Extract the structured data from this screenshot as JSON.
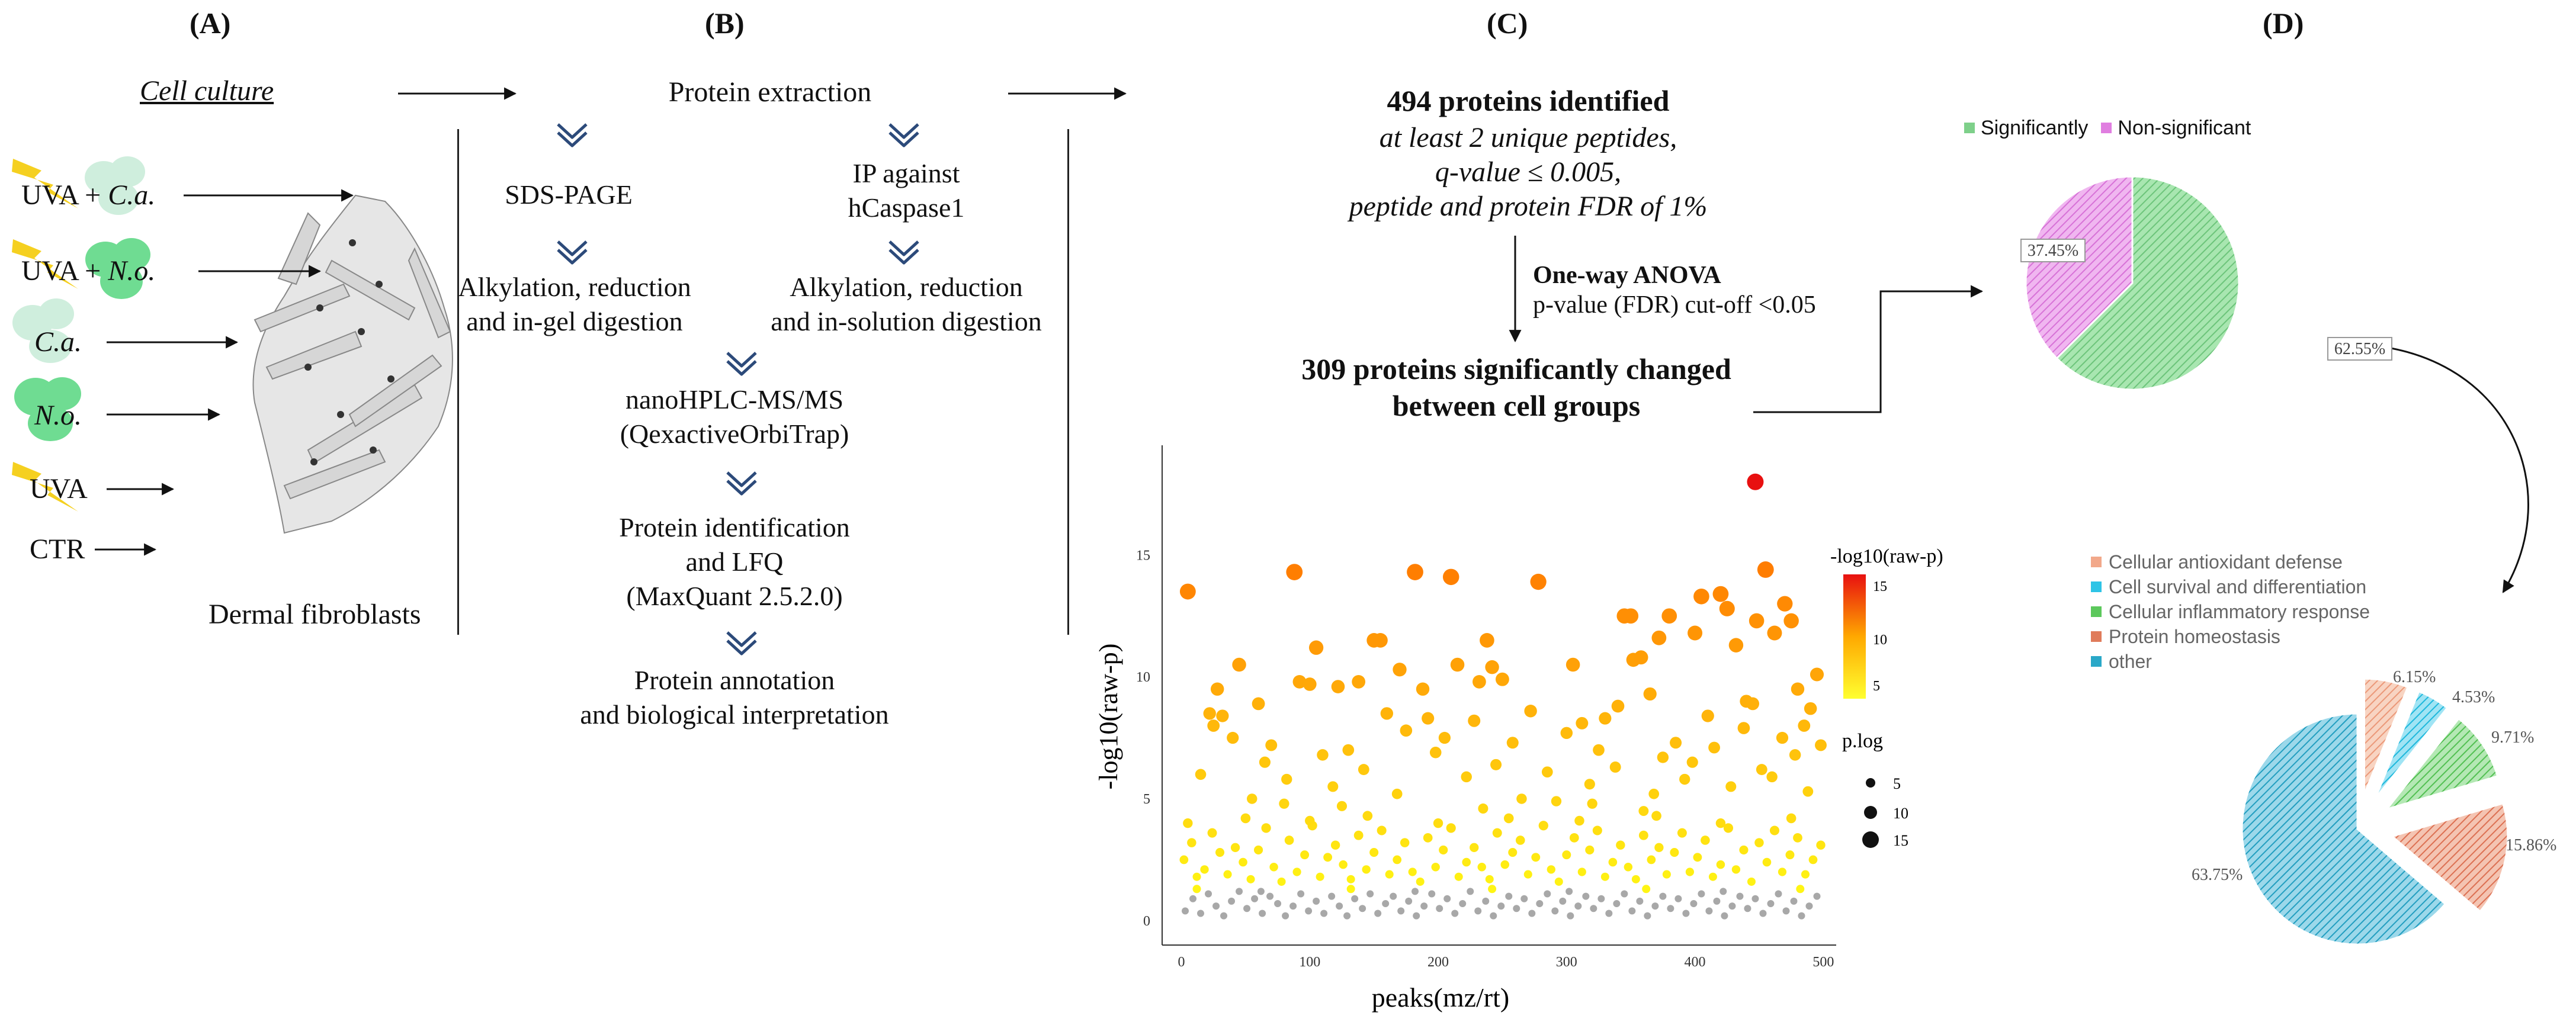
{
  "panel_labels": {
    "a": "(A)",
    "b": "(B)",
    "c": "(C)",
    "d": "(D)"
  },
  "panel_a": {
    "title": "Cell culture",
    "rows": [
      {
        "prefix": "UVA + ",
        "agent": "C.a.",
        "suffix": ""
      },
      {
        "prefix": "UVA + ",
        "agent": "N.o.",
        "suffix": ""
      },
      {
        "prefix": "",
        "agent": "C.a.",
        "suffix": ""
      },
      {
        "prefix": "",
        "agent": "N.o.",
        "suffix": ""
      },
      {
        "prefix": "UVA",
        "agent": "",
        "suffix": ""
      },
      {
        "prefix": "CTR",
        "agent": "",
        "suffix": ""
      }
    ],
    "cells_label": "Dermal fibroblasts"
  },
  "panel_b": {
    "top": "Protein extraction",
    "left_1": "SDS-PAGE",
    "left_2a": "Alkylation, reduction",
    "left_2b": "and in-gel digestion",
    "right_1a": "IP against",
    "right_1b": "hCaspase1",
    "right_2a": "Alkylation, reduction",
    "right_2b": "and in-solution digestion",
    "step_3a": "nanoHPLC-MS/MS",
    "step_3b": "(QexactiveOrbiTrap)",
    "step_4a": "Protein identification",
    "step_4b": "and LFQ",
    "step_4c": "(MaxQuant 2.5.2.0)",
    "step_5a": "Protein annotation",
    "step_5b": "and biological interpretation"
  },
  "panel_c": {
    "identified": "494 proteins identified",
    "crit_1": "at least 2 unique peptides,",
    "crit_2": "q-value ≤ 0.005,",
    "crit_3": "peptide and protein FDR of 1%",
    "test_title": "One-way ANOVA",
    "test_detail": "p-value (FDR) cut-off <0.05",
    "sig_1": "309 proteins significantly changed",
    "sig_2": "between cell groups"
  },
  "panel_d": {
    "legend_sig": "Significantly",
    "legend_nonsig": "Non-significant",
    "pie1_sig_label": "62.55%",
    "pie1_nonsig_label": "37.45%",
    "pie2_legend": [
      "Cellular antioxidant defense",
      "Cell survival and differentiation",
      "Cellular inflammatory response",
      "Protein homeostasis",
      "other"
    ],
    "pie2_labels": [
      "6.15%",
      "4.53%",
      "9.71%",
      "15.86%",
      "63.75%"
    ]
  },
  "colors": {
    "sig_green": "#7ed08a",
    "nonsig_pink": "#e07ee0",
    "antioxidant": "#f2a88a",
    "survival": "#2ec4e6",
    "inflammatory": "#5cc85c",
    "homeostasis": "#e07b5a",
    "other": "#2aa8c8",
    "sunflower": "#f5d020",
    "green_cell": "#6fdc92"
  },
  "chart_data": [
    {
      "type": "pie",
      "title": "",
      "categories": [
        "Significantly",
        "Non-significant"
      ],
      "values": [
        62.55,
        37.45
      ],
      "legend": "top"
    },
    {
      "type": "pie",
      "title": "",
      "categories": [
        "Cellular antioxidant defense",
        "Cell survival and differentiation",
        "Cellular inflammatory response",
        "Protein homeostasis",
        "other"
      ],
      "values": [
        6.15,
        4.53,
        9.71,
        15.86,
        63.75
      ],
      "legend": "top-left"
    },
    {
      "type": "scatter",
      "title": "",
      "xlabel": "peaks(mz/rt)",
      "ylabel": "-log10(raw-p)",
      "xlim": [
        -15,
        510
      ],
      "ylim": [
        -1,
        19.5
      ],
      "xticks": [
        0,
        100,
        200,
        300,
        400,
        500
      ],
      "yticks": [
        0,
        5,
        10,
        15
      ],
      "color_legend_title": "-log10(raw-p)",
      "color_legend_ticks": [
        15,
        10,
        5
      ],
      "size_legend_title": "p.log",
      "size_legend_values": [
        5,
        10,
        15
      ],
      "significance_threshold": 1.3,
      "points": [
        [
          5,
          13.5
        ],
        [
          22,
          8.5
        ],
        [
          28,
          9.5
        ],
        [
          32,
          8.4
        ],
        [
          45,
          10.5
        ],
        [
          88,
          14.3
        ],
        [
          92,
          9.8
        ],
        [
          105,
          11.2
        ],
        [
          100,
          9.7
        ],
        [
          122,
          9.6
        ],
        [
          138,
          9.8
        ],
        [
          150,
          11.5
        ],
        [
          155,
          11.5
        ],
        [
          170,
          10.3
        ],
        [
          182,
          14.3
        ],
        [
          188,
          9.5
        ],
        [
          192,
          8.3
        ],
        [
          210,
          14.1
        ],
        [
          215,
          10.5
        ],
        [
          232,
          9.8
        ],
        [
          238,
          11.5
        ],
        [
          242,
          10.4
        ],
        [
          250,
          9.9
        ],
        [
          278,
          13.9
        ],
        [
          305,
          10.5
        ],
        [
          330,
          8.3
        ],
        [
          345,
          12.5
        ],
        [
          350,
          12.5
        ],
        [
          352,
          10.7
        ],
        [
          358,
          10.8
        ],
        [
          365,
          9.3
        ],
        [
          372,
          11.6
        ],
        [
          380,
          12.5
        ],
        [
          400,
          11.8
        ],
        [
          405,
          13.3
        ],
        [
          420,
          13.4
        ],
        [
          425,
          12.8
        ],
        [
          432,
          11.3
        ],
        [
          440,
          9.0
        ],
        [
          448,
          12.3
        ],
        [
          455,
          14.4
        ],
        [
          462,
          11.8
        ],
        [
          470,
          13.0
        ],
        [
          475,
          12.3
        ],
        [
          480,
          9.5
        ],
        [
          490,
          8.7
        ],
        [
          495,
          10.1
        ],
        [
          447,
          18.0
        ],
        [
          15,
          6.0
        ],
        [
          25,
          8.0
        ],
        [
          40,
          7.5
        ],
        [
          55,
          5.0
        ],
        [
          65,
          6.5
        ],
        [
          70,
          7.2
        ],
        [
          80,
          4.8
        ],
        [
          110,
          6.8
        ],
        [
          118,
          5.5
        ],
        [
          130,
          7.0
        ],
        [
          142,
          6.2
        ],
        [
          160,
          8.5
        ],
        [
          168,
          5.2
        ],
        [
          175,
          7.8
        ],
        [
          198,
          6.9
        ],
        [
          205,
          7.5
        ],
        [
          222,
          5.9
        ],
        [
          228,
          8.2
        ],
        [
          245,
          6.4
        ],
        [
          258,
          7.3
        ],
        [
          265,
          5.0
        ],
        [
          272,
          8.6
        ],
        [
          285,
          6.1
        ],
        [
          292,
          4.9
        ],
        [
          300,
          7.7
        ],
        [
          312,
          8.1
        ],
        [
          318,
          5.6
        ],
        [
          325,
          7.0
        ],
        [
          338,
          6.3
        ],
        [
          340,
          8.8
        ],
        [
          368,
          5.2
        ],
        [
          375,
          6.7
        ],
        [
          385,
          7.3
        ],
        [
          392,
          5.8
        ],
        [
          398,
          6.5
        ],
        [
          410,
          8.4
        ],
        [
          415,
          7.1
        ],
        [
          428,
          5.5
        ],
        [
          438,
          7.9
        ],
        [
          445,
          8.9
        ],
        [
          452,
          6.2
        ],
        [
          460,
          5.9
        ],
        [
          468,
          7.5
        ],
        [
          478,
          6.8
        ],
        [
          485,
          8.0
        ],
        [
          488,
          5.3
        ],
        [
          498,
          7.2
        ],
        [
          60,
          8.9
        ],
        [
          82,
          5.8
        ],
        [
          125,
          4.7
        ],
        [
          235,
          4.6
        ],
        [
          320,
          4.8
        ],
        [
          360,
          4.5
        ],
        [
          2,
          2.5
        ],
        [
          8,
          3.2
        ],
        [
          12,
          1.8
        ],
        [
          18,
          2.1
        ],
        [
          24,
          3.6
        ],
        [
          30,
          2.8
        ],
        [
          36,
          1.9
        ],
        [
          42,
          3.0
        ],
        [
          48,
          2.4
        ],
        [
          54,
          1.7
        ],
        [
          60,
          2.9
        ],
        [
          66,
          3.8
        ],
        [
          72,
          2.2
        ],
        [
          78,
          1.6
        ],
        [
          84,
          3.3
        ],
        [
          90,
          2.0
        ],
        [
          96,
          2.7
        ],
        [
          102,
          3.9
        ],
        [
          108,
          1.8
        ],
        [
          114,
          2.6
        ],
        [
          120,
          3.1
        ],
        [
          126,
          2.3
        ],
        [
          132,
          1.7
        ],
        [
          138,
          3.5
        ],
        [
          144,
          2.1
        ],
        [
          150,
          2.8
        ],
        [
          156,
          3.7
        ],
        [
          162,
          1.9
        ],
        [
          168,
          2.5
        ],
        [
          174,
          3.2
        ],
        [
          180,
          2.0
        ],
        [
          186,
          1.6
        ],
        [
          192,
          3.4
        ],
        [
          198,
          2.2
        ],
        [
          204,
          2.9
        ],
        [
          210,
          3.8
        ],
        [
          216,
          1.8
        ],
        [
          222,
          2.4
        ],
        [
          228,
          3.0
        ],
        [
          234,
          2.2
        ],
        [
          240,
          1.7
        ],
        [
          246,
          3.6
        ],
        [
          252,
          2.3
        ],
        [
          258,
          2.8
        ],
        [
          264,
          3.3
        ],
        [
          270,
          1.9
        ],
        [
          276,
          2.6
        ],
        [
          282,
          3.9
        ],
        [
          288,
          2.1
        ],
        [
          294,
          1.6
        ],
        [
          300,
          2.7
        ],
        [
          306,
          3.4
        ],
        [
          312,
          2.0
        ],
        [
          318,
          2.9
        ],
        [
          324,
          3.7
        ],
        [
          330,
          1.8
        ],
        [
          336,
          2.4
        ],
        [
          342,
          3.1
        ],
        [
          348,
          2.2
        ],
        [
          354,
          1.7
        ],
        [
          360,
          3.5
        ],
        [
          366,
          2.5
        ],
        [
          372,
          3.0
        ],
        [
          378,
          1.9
        ],
        [
          384,
          2.8
        ],
        [
          390,
          3.6
        ],
        [
          396,
          2.0
        ],
        [
          402,
          2.6
        ],
        [
          408,
          3.3
        ],
        [
          414,
          1.8
        ],
        [
          420,
          2.3
        ],
        [
          426,
          3.8
        ],
        [
          432,
          2.1
        ],
        [
          438,
          2.9
        ],
        [
          444,
          1.6
        ],
        [
          450,
          3.2
        ],
        [
          456,
          2.4
        ],
        [
          462,
          3.7
        ],
        [
          468,
          2.0
        ],
        [
          474,
          2.7
        ],
        [
          480,
          3.4
        ],
        [
          486,
          1.9
        ],
        [
          492,
          2.5
        ],
        [
          498,
          3.1
        ],
        [
          5,
          4.0
        ],
        [
          50,
          4.2
        ],
        [
          100,
          4.1
        ],
        [
          145,
          4.3
        ],
        [
          200,
          4.0
        ],
        [
          255,
          4.2
        ],
        [
          310,
          4.1
        ],
        [
          370,
          4.3
        ],
        [
          420,
          4.0
        ],
        [
          475,
          4.2
        ],
        [
          3,
          0.4
        ],
        [
          9,
          0.9
        ],
        [
          15,
          0.3
        ],
        [
          21,
          1.1
        ],
        [
          27,
          0.6
        ],
        [
          33,
          0.2
        ],
        [
          39,
          0.8
        ],
        [
          45,
          1.2
        ],
        [
          51,
          0.5
        ],
        [
          57,
          0.9
        ],
        [
          63,
          0.3
        ],
        [
          69,
          1.0
        ],
        [
          75,
          0.7
        ],
        [
          81,
          0.2
        ],
        [
          87,
          0.6
        ],
        [
          93,
          1.1
        ],
        [
          99,
          0.4
        ],
        [
          105,
          0.8
        ],
        [
          111,
          0.3
        ],
        [
          117,
          1.0
        ],
        [
          123,
          0.6
        ],
        [
          129,
          0.2
        ],
        [
          135,
          0.9
        ],
        [
          141,
          0.5
        ],
        [
          147,
          1.1
        ],
        [
          153,
          0.3
        ],
        [
          159,
          0.7
        ],
        [
          165,
          1.0
        ],
        [
          171,
          0.4
        ],
        [
          177,
          0.8
        ],
        [
          183,
          0.2
        ],
        [
          189,
          0.6
        ],
        [
          195,
          1.1
        ],
        [
          201,
          0.5
        ],
        [
          207,
          0.9
        ],
        [
          213,
          0.3
        ],
        [
          219,
          0.7
        ],
        [
          225,
          1.2
        ],
        [
          231,
          0.4
        ],
        [
          237,
          0.8
        ],
        [
          243,
          0.2
        ],
        [
          249,
          0.6
        ],
        [
          255,
          1.0
        ],
        [
          261,
          0.5
        ],
        [
          267,
          0.9
        ],
        [
          273,
          0.3
        ],
        [
          279,
          0.7
        ],
        [
          285,
          1.1
        ],
        [
          291,
          0.4
        ],
        [
          297,
          0.8
        ],
        [
          303,
          0.2
        ],
        [
          309,
          0.6
        ],
        [
          315,
          1.0
        ],
        [
          321,
          0.5
        ],
        [
          327,
          0.9
        ],
        [
          333,
          0.3
        ],
        [
          339,
          0.7
        ],
        [
          345,
          1.1
        ],
        [
          351,
          0.4
        ],
        [
          357,
          0.8
        ],
        [
          363,
          0.2
        ],
        [
          369,
          0.6
        ],
        [
          375,
          1.0
        ],
        [
          381,
          0.5
        ],
        [
          387,
          0.9
        ],
        [
          393,
          0.3
        ],
        [
          399,
          0.7
        ],
        [
          405,
          1.1
        ],
        [
          411,
          0.4
        ],
        [
          417,
          0.8
        ],
        [
          423,
          0.2
        ],
        [
          429,
          0.6
        ],
        [
          435,
          1.0
        ],
        [
          441,
          0.5
        ],
        [
          447,
          0.9
        ],
        [
          453,
          0.3
        ],
        [
          459,
          0.7
        ],
        [
          465,
          1.1
        ],
        [
          471,
          0.4
        ],
        [
          477,
          0.8
        ],
        [
          483,
          0.2
        ],
        [
          489,
          0.6
        ],
        [
          495,
          1.0
        ],
        [
          12,
          1.3
        ],
        [
          62,
          1.2
        ],
        [
          132,
          1.3
        ],
        [
          182,
          1.2
        ],
        [
          242,
          1.3
        ],
        [
          302,
          1.2
        ],
        [
          362,
          1.3
        ],
        [
          422,
          1.2
        ],
        [
          482,
          1.3
        ]
      ]
    }
  ]
}
